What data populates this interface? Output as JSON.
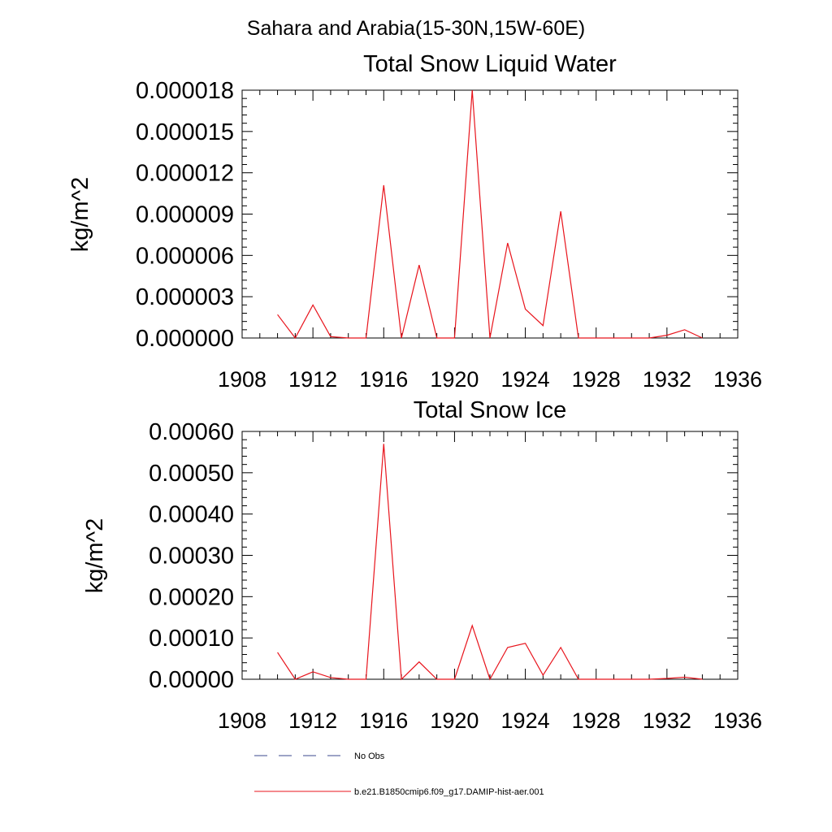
{
  "figure_title": "Sahara and Arabia(15-30N,15W-60E)",
  "legend": [
    {
      "label": "No Obs",
      "color": "#3b4a8c",
      "style": "dashed"
    },
    {
      "label": "b.e21.B1850cmip6.f09_g17.DAMIP-hist-aer.001",
      "color": "#e8141c",
      "style": "solid"
    }
  ],
  "chart_data": [
    {
      "type": "line",
      "title": "Total Snow Liquid Water",
      "xlabel": "",
      "ylabel": "kg/m^2",
      "xlim": [
        1908,
        1936
      ],
      "ylim": [
        0,
        1.8e-05
      ],
      "xticks": [
        1908,
        1912,
        1916,
        1920,
        1924,
        1928,
        1932,
        1936
      ],
      "xtick_labels": [
        "1908",
        "1912",
        "1916",
        "1920",
        "1924",
        "1928",
        "1932",
        "1936"
      ],
      "yticks": [
        0,
        3e-06,
        6e-06,
        9e-06,
        1.2e-05,
        1.5e-05,
        1.8e-05
      ],
      "ytick_labels": [
        "0.000000",
        "0.000003",
        "0.000006",
        "0.000009",
        "0.000012",
        "0.000015",
        "0.000018"
      ],
      "grid": false,
      "series": [
        {
          "name": "b.e21.B1850cmip6.f09_g17.DAMIP-hist-aer.001",
          "color": "#e8141c",
          "x": [
            1910,
            1911,
            1912,
            1913,
            1914,
            1915,
            1916,
            1917,
            1918,
            1919,
            1920,
            1921,
            1922,
            1923,
            1924,
            1925,
            1926,
            1927,
            1928,
            1929,
            1930,
            1931,
            1932,
            1933,
            1934
          ],
          "values": [
            1.7e-06,
            0.0,
            2.4e-06,
            1e-07,
            0.0,
            0.0,
            1.11e-05,
            0.0,
            5.3e-06,
            0.0,
            0.0,
            1.8e-05,
            0.0,
            6.9e-06,
            2.1e-06,
            9e-07,
            9.2e-06,
            0.0,
            0.0,
            0.0,
            0.0,
            0.0,
            2e-07,
            6e-07,
            0.0
          ]
        }
      ]
    },
    {
      "type": "line",
      "title": "Total Snow Ice",
      "xlabel": "",
      "ylabel": "kg/m^2",
      "xlim": [
        1908,
        1936
      ],
      "ylim": [
        0,
        0.0006
      ],
      "xticks": [
        1908,
        1912,
        1916,
        1920,
        1924,
        1928,
        1932,
        1936
      ],
      "xtick_labels": [
        "1908",
        "1912",
        "1916",
        "1920",
        "1924",
        "1928",
        "1932",
        "1936"
      ],
      "yticks": [
        0,
        0.0001,
        0.0002,
        0.0003,
        0.0004,
        0.0005,
        0.0006
      ],
      "ytick_labels": [
        "0.00000",
        "0.00010",
        "0.00020",
        "0.00030",
        "0.00040",
        "0.00050",
        "0.00060"
      ],
      "grid": false,
      "series": [
        {
          "name": "b.e21.B1850cmip6.f09_g17.DAMIP-hist-aer.001",
          "color": "#e8141c",
          "x": [
            1910,
            1911,
            1912,
            1913,
            1914,
            1915,
            1916,
            1917,
            1918,
            1919,
            1920,
            1921,
            1922,
            1923,
            1924,
            1925,
            1926,
            1927,
            1928,
            1929,
            1930,
            1931,
            1932,
            1933,
            1934
          ],
          "values": [
            6.5e-05,
            0.0,
            1.8e-05,
            4e-06,
            0.0,
            0.0,
            0.00057,
            0.0,
            4.2e-05,
            0.0,
            0.0,
            0.00013,
            0.0,
            7.7e-05,
            8.7e-05,
            1e-05,
            7.7e-05,
            0.0,
            0.0,
            0.0,
            0.0,
            0.0,
            2e-06,
            5e-06,
            0.0
          ]
        }
      ]
    }
  ]
}
